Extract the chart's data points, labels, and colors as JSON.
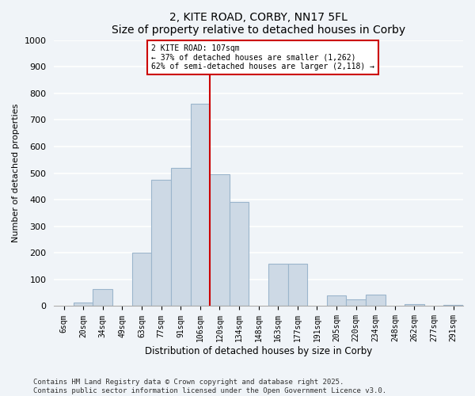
{
  "title": "2, KITE ROAD, CORBY, NN17 5FL",
  "subtitle": "Size of property relative to detached houses in Corby",
  "xlabel": "Distribution of detached houses by size in Corby",
  "ylabel": "Number of detached properties",
  "bin_labels": [
    "6sqm",
    "20sqm",
    "34sqm",
    "49sqm",
    "63sqm",
    "77sqm",
    "91sqm",
    "106sqm",
    "120sqm",
    "134sqm",
    "148sqm",
    "163sqm",
    "177sqm",
    "191sqm",
    "205sqm",
    "220sqm",
    "234sqm",
    "248sqm",
    "262sqm",
    "277sqm",
    "291sqm"
  ],
  "bar_values": [
    0,
    12,
    65,
    0,
    200,
    475,
    520,
    760,
    495,
    390,
    0,
    160,
    160,
    0,
    40,
    25,
    42,
    0,
    8,
    0,
    5
  ],
  "bar_color": "#cdd9e5",
  "bar_edge_color": "#9bb5cc",
  "vline_color": "#cc0000",
  "annotation_title": "2 KITE ROAD: 107sqm",
  "annotation_line1": "← 37% of detached houses are smaller (1,262)",
  "annotation_line2": "62% of semi-detached houses are larger (2,118) →",
  "annotation_box_color": "white",
  "annotation_box_edge": "#cc0000",
  "ylim": [
    0,
    1000
  ],
  "yticks": [
    0,
    100,
    200,
    300,
    400,
    500,
    600,
    700,
    800,
    900,
    1000
  ],
  "footer_line1": "Contains HM Land Registry data © Crown copyright and database right 2025.",
  "footer_line2": "Contains public sector information licensed under the Open Government Licence v3.0.",
  "bg_color": "#f0f4f8",
  "grid_color": "white"
}
